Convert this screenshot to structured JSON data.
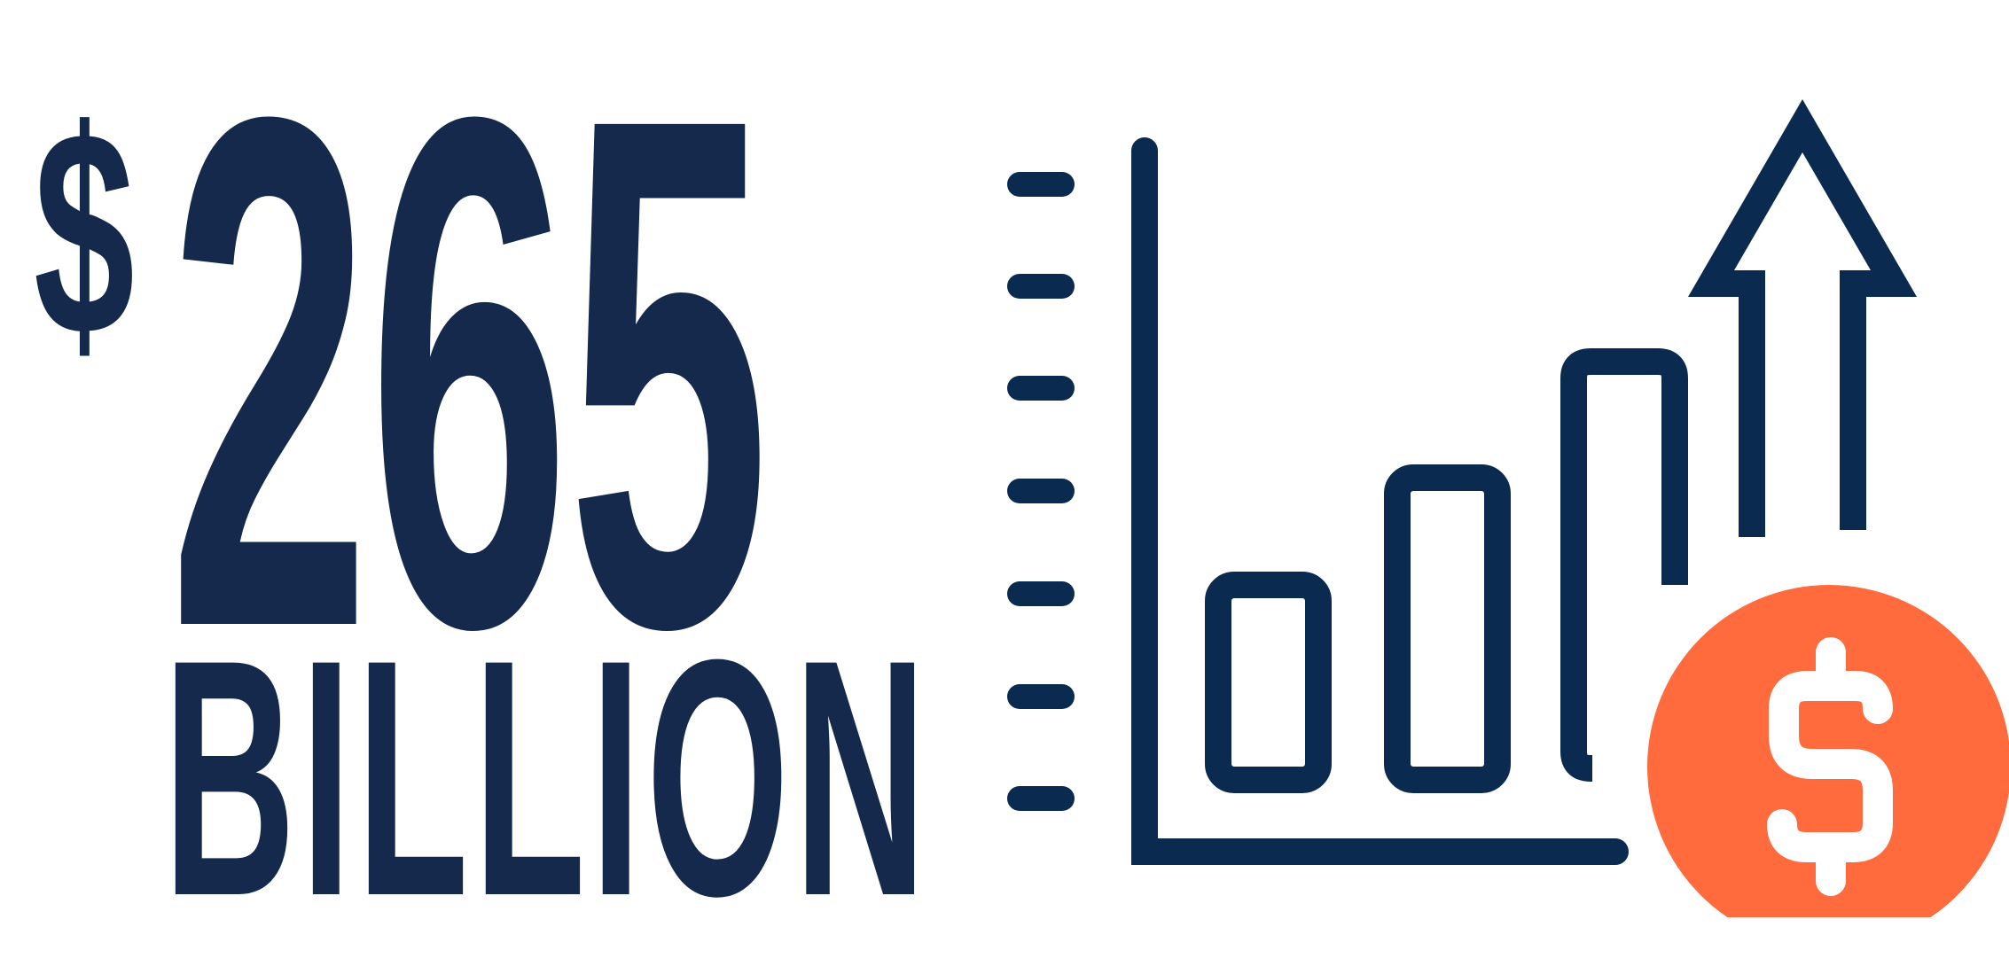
{
  "headline": {
    "currency_symbol": "$",
    "amount": "265",
    "unit": "BILLION"
  },
  "colors": {
    "navy": "#14294b",
    "chart_navy": "#0a2a4f",
    "accent_orange": "#ff6b3d",
    "background": "#ffffff"
  },
  "icons": {
    "growth_chart": "bar-chart-growth-icon",
    "up_arrow": "up-arrow-icon",
    "coin": "dollar-coin-icon"
  }
}
